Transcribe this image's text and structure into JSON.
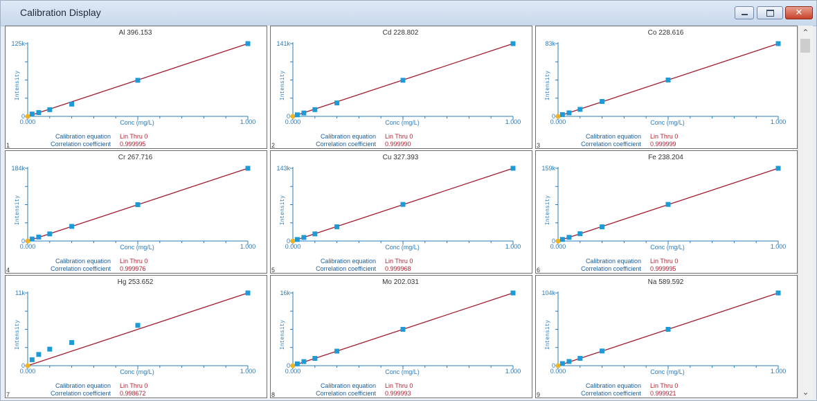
{
  "window": {
    "title": "Calibration Display",
    "minimize_icon": "minimize-icon",
    "maximize_icon": "maximize-icon",
    "close_icon": "close-icon",
    "close_glyph": "✕"
  },
  "scrollbar": {
    "up_glyph": "⌃",
    "down_glyph": "⌄"
  },
  "panel_common": {
    "xlabel": "Conc (mg/L)",
    "ylabel": "Intensity",
    "x_min_label": "0.000",
    "x_max_label": "1.000",
    "y_zero_label": "0",
    "eq_label": "Calibration equation",
    "eq_value": "Lin Thru 0",
    "corr_label": "Correlation coefficient"
  },
  "colors": {
    "axis": "#2b7bb9",
    "fit_line": "#a31a2c",
    "standards": "#1e9bd7",
    "blank": "#f0b323",
    "value_text": "#b02535"
  },
  "chart_data": [
    {
      "type": "scatter",
      "index": "1",
      "title": "Al 396.153",
      "ymax_label": "125k",
      "ylim": [
        0,
        125000
      ],
      "xlim": [
        0,
        1
      ],
      "correlation": "0.999995",
      "standards": [
        [
          0.02,
          4000
        ],
        [
          0.05,
          6500
        ],
        [
          0.1,
          11500
        ],
        [
          0.2,
          21000
        ],
        [
          0.5,
          62000
        ],
        [
          1.0,
          125000
        ]
      ],
      "blank": [
        [
          0,
          0
        ]
      ]
    },
    {
      "type": "scatter",
      "index": "2",
      "title": "Cd 228.802",
      "ymax_label": "141k",
      "ylim": [
        0,
        141000
      ],
      "xlim": [
        0,
        1
      ],
      "correlation": "0.999990",
      "standards": [
        [
          0.02,
          3000
        ],
        [
          0.05,
          6500
        ],
        [
          0.1,
          13000
        ],
        [
          0.2,
          26000
        ],
        [
          0.5,
          70000
        ],
        [
          1.0,
          141000
        ]
      ],
      "blank": [
        [
          0,
          0
        ]
      ]
    },
    {
      "type": "scatter",
      "index": "3",
      "title": "Co 228.616",
      "ymax_label": "83k",
      "ylim": [
        0,
        83000
      ],
      "xlim": [
        0,
        1
      ],
      "correlation": "0.999999",
      "standards": [
        [
          0.02,
          2000
        ],
        [
          0.05,
          4000
        ],
        [
          0.1,
          8000
        ],
        [
          0.2,
          17000
        ],
        [
          0.5,
          41500
        ],
        [
          1.0,
          83000
        ]
      ],
      "blank": [
        [
          0,
          0
        ]
      ]
    },
    {
      "type": "scatter",
      "index": "4",
      "title": "Cr 267.716",
      "ymax_label": "184k",
      "ylim": [
        0,
        184000
      ],
      "xlim": [
        0,
        1
      ],
      "correlation": "0.999976",
      "standards": [
        [
          0.02,
          5000
        ],
        [
          0.05,
          10000
        ],
        [
          0.1,
          18000
        ],
        [
          0.2,
          37000
        ],
        [
          0.5,
          92000
        ],
        [
          1.0,
          184000
        ]
      ],
      "blank": [
        [
          0,
          0
        ]
      ]
    },
    {
      "type": "scatter",
      "index": "5",
      "title": "Cu 327.393",
      "ymax_label": "143k",
      "ylim": [
        0,
        143000
      ],
      "xlim": [
        0,
        1
      ],
      "correlation": "0.999968",
      "standards": [
        [
          0.02,
          3000
        ],
        [
          0.05,
          7000
        ],
        [
          0.1,
          14000
        ],
        [
          0.2,
          28000
        ],
        [
          0.5,
          72000
        ],
        [
          1.0,
          143000
        ]
      ],
      "blank": [
        [
          0,
          0
        ]
      ]
    },
    {
      "type": "scatter",
      "index": "6",
      "title": "Fe 238.204",
      "ymax_label": "159k",
      "ylim": [
        0,
        159000
      ],
      "xlim": [
        0,
        1
      ],
      "correlation": "0.999995",
      "standards": [
        [
          0.02,
          3500
        ],
        [
          0.05,
          8000
        ],
        [
          0.1,
          16000
        ],
        [
          0.2,
          31000
        ],
        [
          0.5,
          80000
        ],
        [
          1.0,
          159000
        ]
      ],
      "blank": [
        [
          0,
          0
        ]
      ]
    },
    {
      "type": "scatter",
      "index": "7",
      "title": "Hg 253.652",
      "ymax_label": "11k",
      "ylim": [
        0,
        11000
      ],
      "xlim": [
        0,
        1
      ],
      "correlation": "0.998672",
      "standards": [
        [
          0.02,
          900
        ],
        [
          0.05,
          1700
        ],
        [
          0.1,
          2500
        ],
        [
          0.2,
          3500
        ],
        [
          0.5,
          6100
        ],
        [
          1.0,
          11000
        ]
      ],
      "blank": [
        [
          0,
          0
        ]
      ]
    },
    {
      "type": "scatter",
      "index": "8",
      "title": "Mo 202.031",
      "ymax_label": "16k",
      "ylim": [
        0,
        16000
      ],
      "xlim": [
        0,
        1
      ],
      "correlation": "0.999993",
      "standards": [
        [
          0.02,
          400
        ],
        [
          0.05,
          900
        ],
        [
          0.1,
          1600
        ],
        [
          0.2,
          3200
        ],
        [
          0.5,
          8000
        ],
        [
          1.0,
          16000
        ]
      ],
      "blank": [
        [
          0,
          0
        ]
      ]
    },
    {
      "type": "scatter",
      "index": "9",
      "title": "Na 589.592",
      "ymax_label": "104k",
      "ylim": [
        0,
        104000
      ],
      "xlim": [
        0,
        1
      ],
      "correlation": "0.999921",
      "standards": [
        [
          0.02,
          3000
        ],
        [
          0.05,
          6000
        ],
        [
          0.1,
          10500
        ],
        [
          0.2,
          21000
        ],
        [
          0.5,
          52000
        ],
        [
          1.0,
          104000
        ]
      ],
      "blank": [
        [
          0,
          0
        ]
      ]
    }
  ]
}
